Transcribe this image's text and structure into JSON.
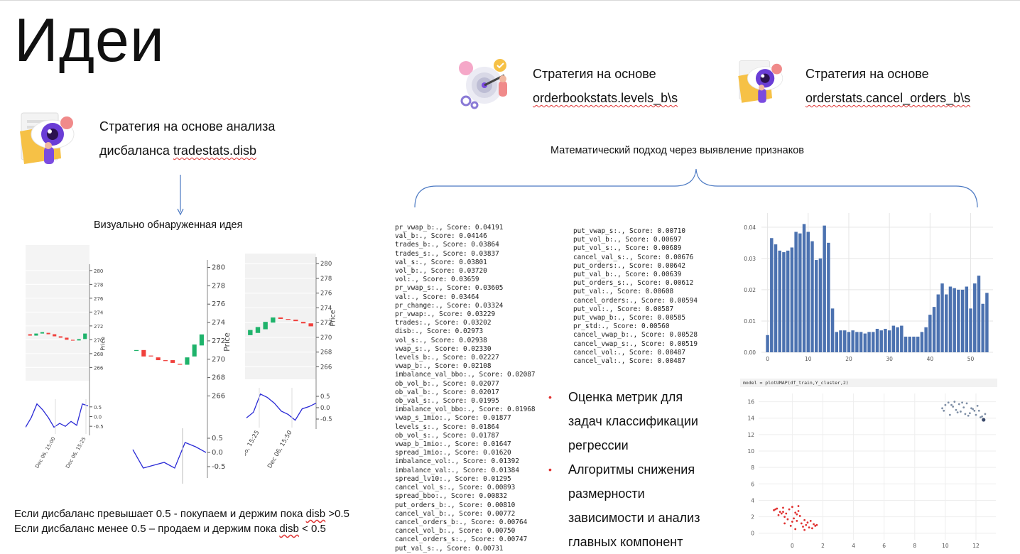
{
  "slide": {
    "title": "Идеи"
  },
  "left_strategy": {
    "line1": "Стратегия на основе анализа",
    "line2_prefix": "дисбаланса ",
    "line2_term": "tradestats.disb",
    "caption": "Визуально обнаруженная идея"
  },
  "strategy_b": {
    "line1": "Стратегия на основе",
    "line2": "orderbookstats.levels_b\\s"
  },
  "strategy_c": {
    "line1": "Стратегия на основе",
    "line2": "orderstats.cancel_orders_b\\s"
  },
  "math_caption": "Математический подход через выявление признаков",
  "rules": {
    "line1_prefix": "Если дисбаланс превышает 0.5 - покупаем и держим пока ",
    "line1_term": "disb",
    "line1_suffix": " >0.5",
    "line2_prefix": "Если дисбаланс менее 0.5 – продаем и держим пока ",
    "line2_term": "disb",
    "line2_suffix": " < 0.5"
  },
  "scores_left": [
    "pr_vwap_b:., Score: 0.04191",
    "val_b:., Score: 0.04146",
    "trades_b:., Score: 0.03864",
    "trades_s:., Score: 0.03837",
    "val_s:., Score: 0.03801",
    "vol_b:., Score: 0.03720",
    "vol:., Score: 0.03659",
    "pr_vwap_s:., Score: 0.03605",
    "val:., Score: 0.03464",
    "pr_change:., Score: 0.03324",
    "pr_vwap:., Score: 0.03229",
    "trades:., Score: 0.03202",
    "disb:., Score: 0.02973",
    "vol_s:., Score: 0.02938",
    "vwap_s:., Score: 0.02330",
    "levels_b:., Score: 0.02227",
    "vwap_b:., Score: 0.02108",
    "imbalance_val_bbo:., Score: 0.02087",
    "ob_vol_b:., Score: 0.02077",
    "ob_val_b:., Score: 0.02017",
    "ob_val_s:., Score: 0.01995",
    "imbalance_vol_bbo:., Score: 0.01968",
    "vwap_s_1mio:., Score: 0.01877",
    "levels_s:., Score: 0.01864",
    "ob_vol_s:., Score: 0.01787",
    "vwap_b_1mio:., Score: 0.01647",
    "spread_1mio:., Score: 0.01620",
    "imbalance_vol:., Score: 0.01392",
    "imbalance_val:., Score: 0.01384",
    "spread_lv10:., Score: 0.01295",
    "cancel_vol_s:., Score: 0.00893",
    "spread_bbo:., Score: 0.00832",
    "put_orders_b:., Score: 0.00810",
    "cancel_val_b:., Score: 0.00772",
    "cancel_orders_b:., Score: 0.00764",
    "cancel_vol_b:., Score: 0.00750",
    "cancel_orders_s:., Score: 0.00747",
    "put_val_s:., Score: 0.00731"
  ],
  "scores_right": [
    "put_vwap_s:., Score: 0.00710",
    "put_vol_b:., Score: 0.00697",
    "put_vol_s:., Score: 0.00689",
    "cancel_val_s:., Score: 0.00676",
    "put_orders:., Score: 0.00642",
    "put_val_b:., Score: 0.00639",
    "put_orders_s:., Score: 0.00612",
    "put_val:., Score: 0.00608",
    "cancel_orders:., Score: 0.00594",
    "put_vol:., Score: 0.00587",
    "put_vwap_b:., Score: 0.00585",
    "pr_std:., Score: 0.00560",
    "cancel_vwap_b:., Score: 0.00528",
    "cancel_vwap_s:., Score: 0.00519",
    "cancel_vol:., Score: 0.00487",
    "cancel_val:., Score: 0.00487"
  ],
  "bullets": [
    "Оценка метрик для задач классификации регрессии",
    "Алгоритмы снижения размерности зависимости и анализ главных компонент"
  ],
  "bullet_lines": [
    [
      "Оценка метрик для",
      "задач классификации",
      "регрессии"
    ],
    [
      "Алгоритмы снижения",
      "размерности",
      "зависимости и анализ",
      "главных компонент"
    ]
  ],
  "umap_code": "model = plotUMAP(df_train,Y_cluster,2)",
  "chart_data": [
    {
      "type": "bar",
      "x": [
        0,
        1,
        2,
        3,
        4,
        5,
        6,
        7,
        8,
        9,
        10,
        11,
        12,
        13,
        14,
        15,
        16,
        17,
        18,
        19,
        20,
        21,
        22,
        23,
        24,
        25,
        26,
        27,
        28,
        29,
        30,
        31,
        32,
        33,
        34,
        35,
        36,
        37,
        38,
        39,
        40,
        41,
        42,
        43,
        44,
        45,
        46,
        47,
        48,
        49,
        50,
        51,
        52,
        53,
        54
      ],
      "values": [
        0.0055,
        0.0365,
        0.0345,
        0.0325,
        0.032,
        0.0325,
        0.0335,
        0.0385,
        0.038,
        0.041,
        0.0385,
        0.0355,
        0.0295,
        0.03,
        0.0405,
        0.035,
        0.014,
        0.0065,
        0.007,
        0.007,
        0.0065,
        0.007,
        0.0065,
        0.0065,
        0.006,
        0.0065,
        0.0065,
        0.0075,
        0.007,
        0.0075,
        0.007,
        0.0085,
        0.008,
        0.0085,
        0.005,
        0.005,
        0.005,
        0.005,
        0.0065,
        0.008,
        0.012,
        0.0145,
        0.0185,
        0.022,
        0.0185,
        0.021,
        0.0205,
        0.02,
        0.02,
        0.021,
        0.014,
        0.022,
        0.0245,
        0.0155,
        0.019
      ],
      "xticks": [
        0,
        10,
        20,
        30,
        40,
        50
      ],
      "yticks": [
        0.0,
        0.01,
        0.02,
        0.03,
        0.04
      ],
      "xlim": [
        -1.5,
        55.5
      ],
      "ylim": [
        0,
        0.0445
      ],
      "color": "#4c72b0"
    },
    {
      "type": "scatter",
      "series": [
        {
          "color": "#e0302f",
          "x": [
            -1.2,
            -1.0,
            -0.8,
            -0.6,
            -0.4,
            -0.2,
            0.0,
            0.2,
            0.4,
            -0.9,
            -0.5,
            0.1,
            0.5,
            0.8,
            1.0,
            1.2,
            1.4,
            1.5,
            -0.3,
            0.3,
            0.6,
            -0.7,
            0.9,
            1.3,
            -0.1,
            0.2,
            0.7,
            1.1,
            -0.5,
            0.0,
            0.4,
            1.6,
            -1.1,
            -0.6,
            0.3,
            0.8
          ],
          "y": [
            2.8,
            3.0,
            2.6,
            3.1,
            2.4,
            2.9,
            3.2,
            2.5,
            2.7,
            2.2,
            2.0,
            1.8,
            2.1,
            1.6,
            1.3,
            1.5,
            1.1,
            0.9,
            1.7,
            1.5,
            1.2,
            2.4,
            1.0,
            0.6,
            0.9,
            0.5,
            0.8,
            0.7,
            1.2,
            1.4,
            3.3,
            1.0,
            2.9,
            2.6,
            2.3,
            0.4
          ]
        },
        {
          "color": "#7f8fa6",
          "x": [
            9.8,
            10.0,
            10.2,
            10.5,
            10.7,
            10.9,
            11.0,
            11.2,
            11.4,
            11.6,
            11.8,
            12.0,
            12.2,
            12.4,
            12.6,
            10.3,
            10.8,
            11.5,
            12.1,
            10.6,
            11.1,
            11.9,
            12.3,
            9.9,
            10.4,
            11.3,
            11.7,
            12.5
          ],
          "y": [
            15.2,
            15.6,
            15.9,
            15.4,
            15.0,
            15.7,
            14.8,
            15.3,
            15.8,
            14.6,
            15.1,
            14.4,
            14.9,
            14.2,
            14.5,
            14.4,
            14.7,
            14.3,
            15.5,
            16.0,
            15.9,
            14.9,
            14.1,
            14.9,
            15.6,
            14.5,
            15.2,
            13.8
          ]
        }
      ],
      "xticks": [
        0,
        2,
        4,
        6,
        8,
        10,
        12
      ],
      "yticks": [
        0,
        2,
        4,
        6,
        8,
        10,
        12,
        14,
        16
      ],
      "xlim": [
        -2.2,
        13.3
      ],
      "ylim": [
        -0.8,
        17.0
      ]
    },
    {
      "type": "line",
      "price_ticks": [
        266,
        268,
        270,
        272,
        274,
        276,
        278,
        280
      ],
      "disb_ticks": [
        0.5,
        0.0,
        -0.5
      ],
      "price_ylim": [
        264.5,
        280.5
      ],
      "disb_ylim": [
        -0.75,
        0.75
      ],
      "x_labels": [
        "Dec 06, 15:00",
        "Dec 06, 15:25"
      ],
      "candles": [
        [
          270.8,
          270.6
        ],
        [
          270.6,
          270.9
        ],
        [
          270.9,
          271.1
        ],
        [
          271.0,
          270.8
        ],
        [
          270.8,
          270.5
        ],
        [
          270.5,
          270.3
        ],
        [
          270.3,
          270.0
        ],
        [
          270.0,
          269.9
        ],
        [
          269.9,
          270.1
        ],
        [
          270.1,
          270.9
        ]
      ],
      "disb": [
        -0.55,
        -0.05,
        0.65,
        0.35,
        -0.05,
        -0.55,
        -0.35,
        -0.5,
        -0.25,
        -0.45,
        0.65,
        0.55
      ],
      "ylabel": "Price"
    },
    {
      "type": "line",
      "price_ticks": [
        266,
        268,
        270,
        272,
        274,
        276,
        278,
        280
      ],
      "disb_ticks": [
        0.5,
        0.0,
        -0.5
      ],
      "price_ylim": [
        264.8,
        280.5
      ],
      "disb_ylim": [
        -0.75,
        0.75
      ],
      "candles": [
        [
          270.9,
          271.0
        ],
        [
          271.0,
          270.3
        ],
        [
          270.4,
          270.3
        ],
        [
          270.2,
          269.9
        ],
        [
          269.9,
          269.8
        ],
        [
          269.9,
          269.6
        ],
        [
          269.5,
          269.4
        ],
        [
          269.4,
          270.2
        ],
        [
          270.3,
          271.6
        ],
        [
          271.5,
          272.7
        ]
      ],
      "disb": [
        0.1,
        -0.55,
        -0.45,
        -0.35,
        -0.55,
        0.35,
        0.2,
        0.0
      ],
      "ylabel": "Price"
    },
    {
      "type": "line",
      "price_ticks": [
        266,
        268,
        270,
        272,
        274,
        276,
        278,
        280
      ],
      "disb_ticks": [
        0.5,
        0.0,
        -0.5
      ],
      "price_ylim": [
        264.7,
        280.5
      ],
      "disb_ylim": [
        -0.75,
        0.75
      ],
      "x_labels": [
        "06, 15:25",
        "Dec 06, 15:50"
      ],
      "candles": [
        [
          270.3,
          271.0
        ],
        [
          270.6,
          271.4
        ],
        [
          271.1,
          272.1
        ],
        [
          272.0,
          272.7
        ],
        [
          272.7,
          272.5
        ],
        [
          272.5,
          272.4
        ],
        [
          272.4,
          272.2
        ],
        [
          272.1,
          271.9
        ],
        [
          271.9,
          271.5
        ]
      ],
      "disb": [
        -0.45,
        -0.2,
        0.6,
        0.45,
        0.2,
        -0.15,
        -0.3,
        -0.55,
        -0.05,
        0.05,
        0.2
      ],
      "ylabel": "Price"
    }
  ]
}
